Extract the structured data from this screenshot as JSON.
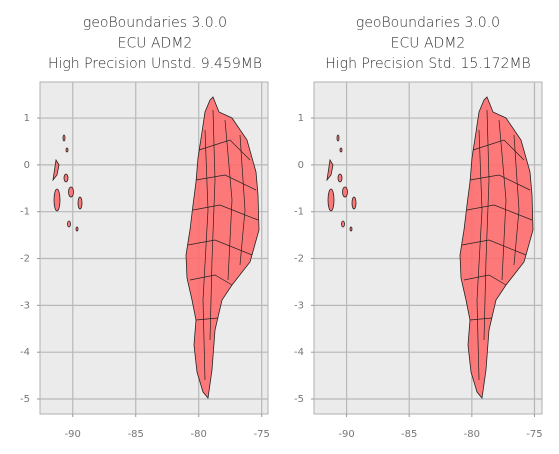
{
  "chart_data": [
    {
      "type": "map",
      "title": [
        "geoBoundaries 3.0.0",
        "ECU ADM2",
        "High Precision Unstd. 9.459MB"
      ],
      "xlim": [
        -92.6,
        -74.5
      ],
      "ylim": [
        -5.32,
        1.77
      ],
      "xticks": [
        -90,
        -85,
        -80,
        -75
      ],
      "yticks": [
        1,
        0,
        -1,
        -2,
        -3,
        -4,
        -5
      ],
      "grid": true,
      "color": "#ff6b6b"
    },
    {
      "type": "map",
      "title": [
        "geoBoundaries 3.0.0",
        "ECU ADM2",
        "High Precision Std. 15.172MB"
      ],
      "xlim": [
        -92.6,
        -74.4
      ],
      "ylim": [
        -5.32,
        1.77
      ],
      "xticks": [
        -90,
        -85,
        -80,
        -75
      ],
      "yticks": [
        1,
        0,
        -1,
        -2,
        -3,
        -4,
        -5
      ],
      "grid": true,
      "color": "#ff6b6b"
    }
  ]
}
